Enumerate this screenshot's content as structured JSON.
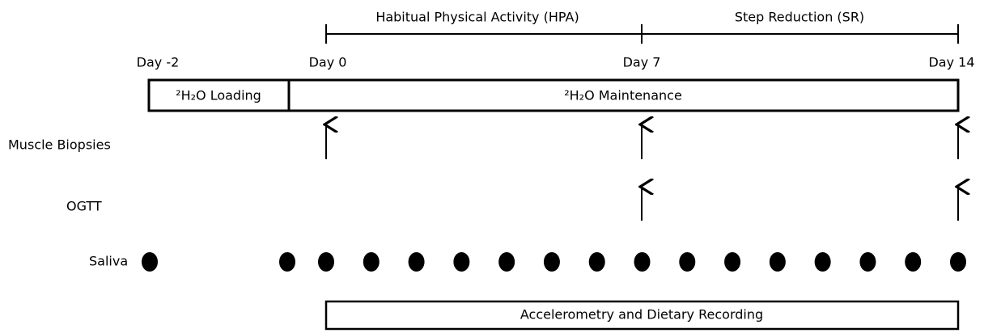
{
  "phases": [
    {
      "label": "Habitual Physical Activity (HPA)"
    },
    {
      "label": "Step Reduction (SR)"
    }
  ],
  "days": [
    "Day -2",
    "Day 0",
    "Day 7",
    "Day 14"
  ],
  "boxes": [
    {
      "label": "²H₂O Loading"
    },
    {
      "label": "²H₂O Maintenance"
    }
  ],
  "rows": [
    "Muscle Biopsies",
    "OGTT",
    "Saliva"
  ],
  "footer_box": {
    "label": "Accelerometry and Dietary Recording"
  }
}
